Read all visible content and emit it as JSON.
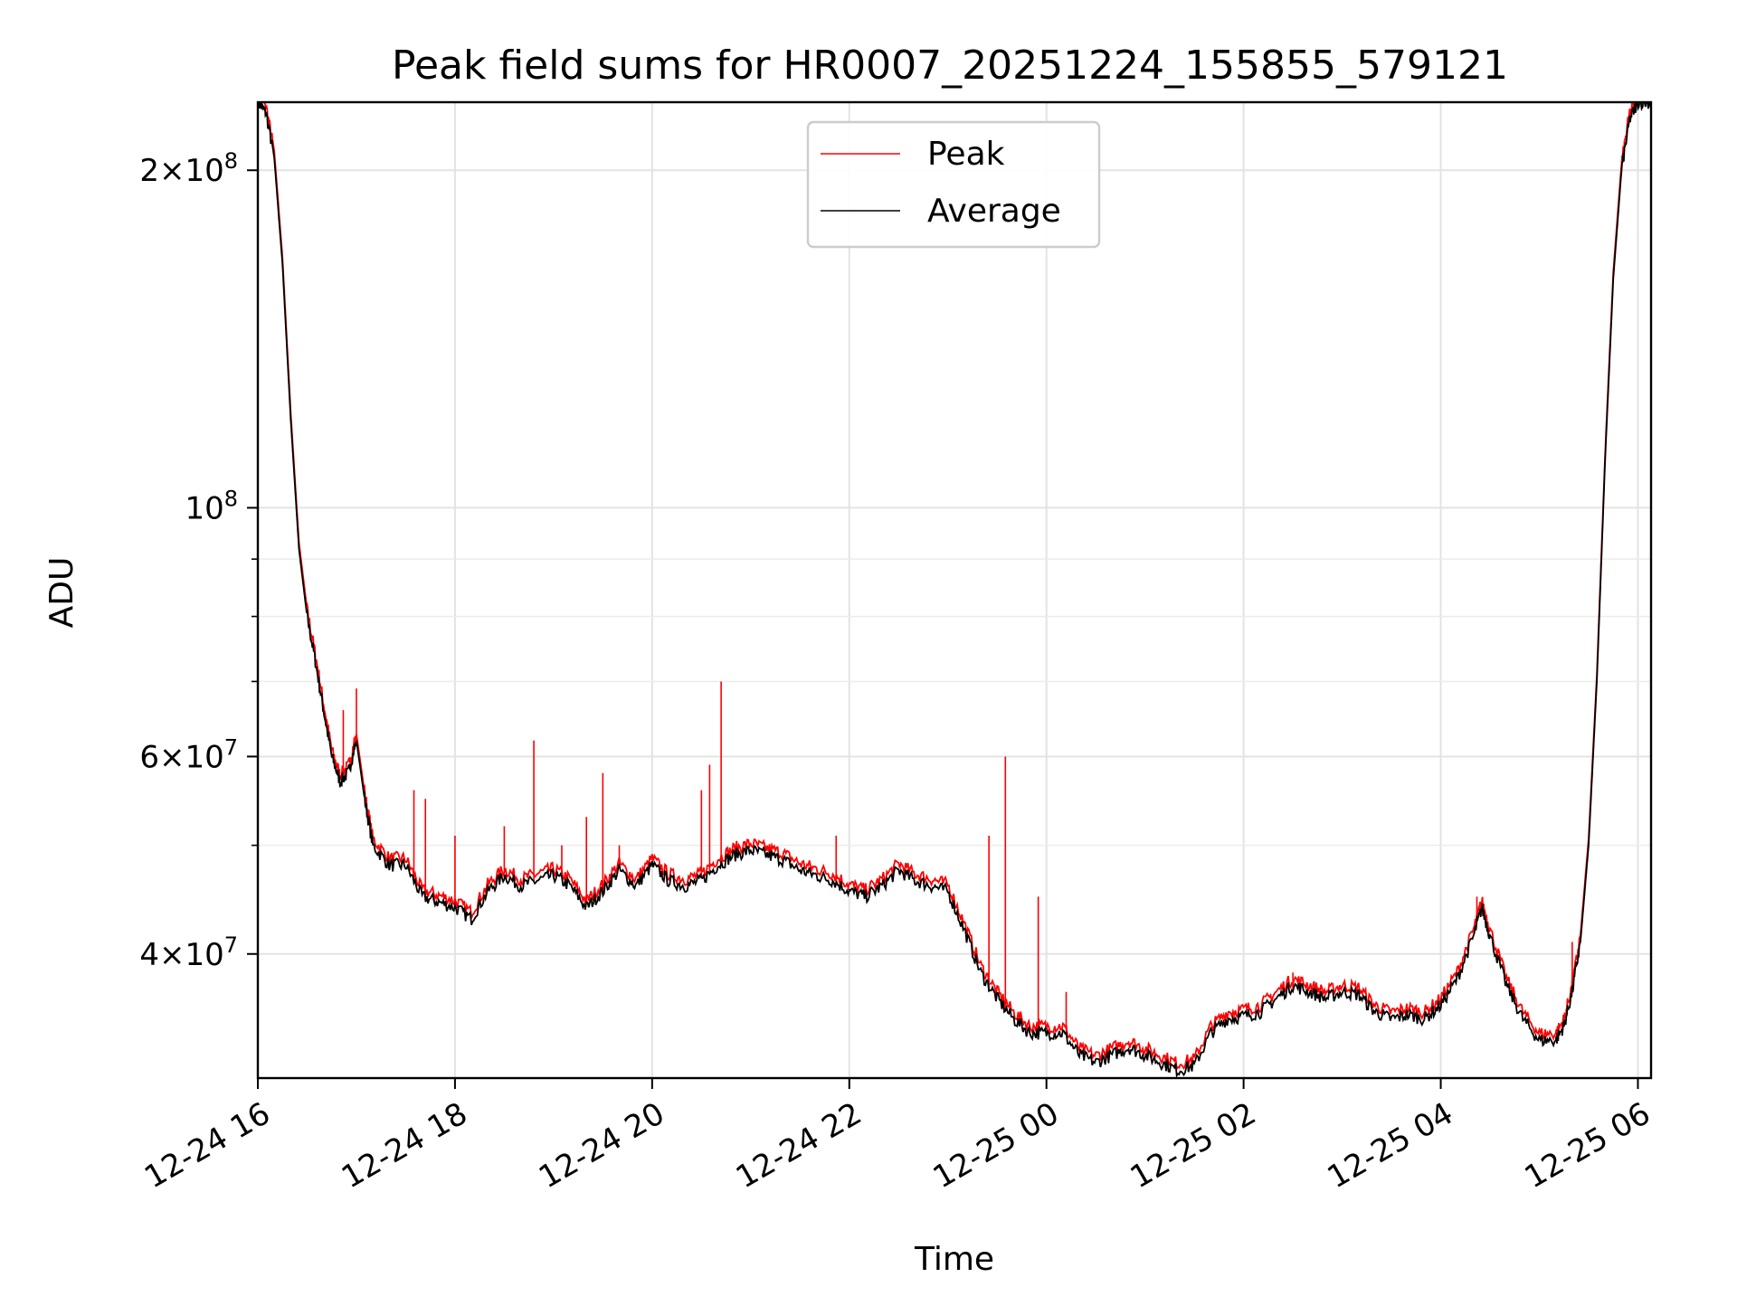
{
  "chart_data": {
    "type": "line",
    "title": "Peak field sums for HR0007_20251224_155855_579121",
    "xlabel": "Time",
    "ylabel": "ADU",
    "yscale": "log",
    "ylim": [
      31000000,
      230000000
    ],
    "xlim": [
      "2025-12-24 16:00",
      "2025-12-25 06:08"
    ],
    "grid": true,
    "legend_position": "top-center",
    "x_ticks": [
      {
        "value": "2025-12-24 16:00",
        "label": "12-24 16"
      },
      {
        "value": "2025-12-24 18:00",
        "label": "12-24 18"
      },
      {
        "value": "2025-12-24 20:00",
        "label": "12-24 20"
      },
      {
        "value": "2025-12-24 22:00",
        "label": "12-24 22"
      },
      {
        "value": "2025-12-25 00:00",
        "label": "12-25 00"
      },
      {
        "value": "2025-12-25 02:00",
        "label": "12-25 02"
      },
      {
        "value": "2025-12-25 04:00",
        "label": "12-25 04"
      },
      {
        "value": "2025-12-25 06:00",
        "label": "12-25 06"
      }
    ],
    "y_ticks": [
      {
        "value": 40000000,
        "mantissa": "4",
        "exponent": "7"
      },
      {
        "value": 60000000,
        "mantissa": "6",
        "exponent": "7"
      },
      {
        "value": 100000000,
        "mantissa": "",
        "exponent": "8"
      },
      {
        "value": 200000000,
        "mantissa": "2",
        "exponent": "8"
      }
    ],
    "y_minor_ticks": [
      50000000,
      70000000,
      80000000,
      90000000
    ],
    "series": [
      {
        "name": "Average",
        "color": "#000000",
        "points": [
          [
            "2025-12-24 16:00",
            230000000
          ],
          [
            "2025-12-24 16:05",
            225000000
          ],
          [
            "2025-12-24 16:10",
            205000000
          ],
          [
            "2025-12-24 16:15",
            165000000
          ],
          [
            "2025-12-24 16:20",
            120000000
          ],
          [
            "2025-12-24 16:25",
            92000000
          ],
          [
            "2025-12-24 16:30",
            80000000
          ],
          [
            "2025-12-24 16:35",
            73000000
          ],
          [
            "2025-12-24 16:40",
            66000000
          ],
          [
            "2025-12-24 16:45",
            60000000
          ],
          [
            "2025-12-24 16:50",
            57000000
          ],
          [
            "2025-12-24 16:55",
            58000000
          ],
          [
            "2025-12-24 17:00",
            62000000
          ],
          [
            "2025-12-24 17:05",
            55000000
          ],
          [
            "2025-12-24 17:10",
            50000000
          ],
          [
            "2025-12-24 17:20",
            48000000
          ],
          [
            "2025-12-24 17:30",
            48000000
          ],
          [
            "2025-12-24 17:40",
            45000000
          ],
          [
            "2025-12-24 17:50",
            44500000
          ],
          [
            "2025-12-24 18:00",
            44000000
          ],
          [
            "2025-12-24 18:10",
            43000000
          ],
          [
            "2025-12-24 18:20",
            45500000
          ],
          [
            "2025-12-24 18:30",
            47000000
          ],
          [
            "2025-12-24 18:40",
            46000000
          ],
          [
            "2025-12-24 18:50",
            46500000
          ],
          [
            "2025-12-24 19:00",
            47000000
          ],
          [
            "2025-12-24 19:10",
            46000000
          ],
          [
            "2025-12-24 19:20",
            44000000
          ],
          [
            "2025-12-24 19:30",
            45500000
          ],
          [
            "2025-12-24 19:40",
            47500000
          ],
          [
            "2025-12-24 19:50",
            46000000
          ],
          [
            "2025-12-24 20:00",
            48000000
          ],
          [
            "2025-12-24 20:10",
            46500000
          ],
          [
            "2025-12-24 20:20",
            46000000
          ],
          [
            "2025-12-24 20:30",
            46500000
          ],
          [
            "2025-12-24 20:40",
            48000000
          ],
          [
            "2025-12-24 20:50",
            49000000
          ],
          [
            "2025-12-24 21:00",
            49500000
          ],
          [
            "2025-12-24 21:10",
            49000000
          ],
          [
            "2025-12-24 21:20",
            48500000
          ],
          [
            "2025-12-24 21:30",
            47500000
          ],
          [
            "2025-12-24 21:40",
            47000000
          ],
          [
            "2025-12-24 21:50",
            46500000
          ],
          [
            "2025-12-24 22:00",
            45500000
          ],
          [
            "2025-12-24 22:10",
            45000000
          ],
          [
            "2025-12-24 22:20",
            46000000
          ],
          [
            "2025-12-24 22:30",
            47500000
          ],
          [
            "2025-12-24 22:40",
            46500000
          ],
          [
            "2025-12-24 22:50",
            46000000
          ],
          [
            "2025-12-24 23:00",
            45500000
          ],
          [
            "2025-12-24 23:10",
            42000000
          ],
          [
            "2025-12-24 23:20",
            38500000
          ],
          [
            "2025-12-24 23:30",
            36500000
          ],
          [
            "2025-12-24 23:40",
            35000000
          ],
          [
            "2025-12-24 23:50",
            34000000
          ],
          [
            "2025-12-25 00:00",
            34000000
          ],
          [
            "2025-12-25 00:10",
            34000000
          ],
          [
            "2025-12-25 00:20",
            32500000
          ],
          [
            "2025-12-25 00:30",
            32000000
          ],
          [
            "2025-12-25 00:40",
            32500000
          ],
          [
            "2025-12-25 00:50",
            33000000
          ],
          [
            "2025-12-25 01:00",
            32500000
          ],
          [
            "2025-12-25 01:10",
            32000000
          ],
          [
            "2025-12-25 01:20",
            31500000
          ],
          [
            "2025-12-25 01:30",
            31800000
          ],
          [
            "2025-12-25 01:40",
            34000000
          ],
          [
            "2025-12-25 01:50",
            35000000
          ],
          [
            "2025-12-25 02:00",
            35200000
          ],
          [
            "2025-12-25 02:10",
            35500000
          ],
          [
            "2025-12-25 02:20",
            36500000
          ],
          [
            "2025-12-25 02:30",
            37500000
          ],
          [
            "2025-12-25 02:40",
            37000000
          ],
          [
            "2025-12-25 02:50",
            36500000
          ],
          [
            "2025-12-25 03:00",
            37000000
          ],
          [
            "2025-12-25 03:10",
            36800000
          ],
          [
            "2025-12-25 03:20",
            35500000
          ],
          [
            "2025-12-25 03:30",
            35000000
          ],
          [
            "2025-12-25 03:40",
            35300000
          ],
          [
            "2025-12-25 03:50",
            35000000
          ],
          [
            "2025-12-25 04:00",
            36000000
          ],
          [
            "2025-12-25 04:10",
            38000000
          ],
          [
            "2025-12-25 04:20",
            41500000
          ],
          [
            "2025-12-25 04:25",
            44000000
          ],
          [
            "2025-12-25 04:30",
            41500000
          ],
          [
            "2025-12-25 04:40",
            37500000
          ],
          [
            "2025-12-25 04:50",
            35000000
          ],
          [
            "2025-12-25 05:00",
            33500000
          ],
          [
            "2025-12-25 05:10",
            33500000
          ],
          [
            "2025-12-25 05:15",
            34500000
          ],
          [
            "2025-12-25 05:20",
            37000000
          ],
          [
            "2025-12-25 05:25",
            41000000
          ],
          [
            "2025-12-25 05:30",
            50000000
          ],
          [
            "2025-12-25 05:35",
            70000000
          ],
          [
            "2025-12-25 05:40",
            110000000
          ],
          [
            "2025-12-25 05:45",
            160000000
          ],
          [
            "2025-12-25 05:50",
            200000000
          ],
          [
            "2025-12-25 05:55",
            222000000
          ],
          [
            "2025-12-25 06:00",
            230000000
          ],
          [
            "2025-12-25 06:08",
            230000000
          ]
        ]
      },
      {
        "name": "Peak",
        "color": "#ff0000",
        "spikes": [
          [
            "2025-12-24 16:52",
            66000000
          ],
          [
            "2025-12-24 17:00",
            69000000
          ],
          [
            "2025-12-24 17:22",
            49000000
          ],
          [
            "2025-12-24 17:35",
            56000000
          ],
          [
            "2025-12-24 17:42",
            55000000
          ],
          [
            "2025-12-24 18:00",
            51000000
          ],
          [
            "2025-12-24 18:30",
            52000000
          ],
          [
            "2025-12-24 18:48",
            62000000
          ],
          [
            "2025-12-24 19:05",
            50000000
          ],
          [
            "2025-12-24 19:20",
            53000000
          ],
          [
            "2025-12-24 19:30",
            58000000
          ],
          [
            "2025-12-24 19:40",
            50000000
          ],
          [
            "2025-12-24 20:30",
            56000000
          ],
          [
            "2025-12-24 20:35",
            59000000
          ],
          [
            "2025-12-24 20:42",
            70000000
          ],
          [
            "2025-12-24 21:52",
            51000000
          ],
          [
            "2025-12-24 23:25",
            51000000
          ],
          [
            "2025-12-24 23:35",
            60000000
          ],
          [
            "2025-12-24 23:55",
            45000000
          ],
          [
            "2025-12-25 00:12",
            37000000
          ],
          [
            "2025-12-25 02:30",
            38500000
          ],
          [
            "2025-12-25 04:22",
            45000000
          ],
          [
            "2025-12-25 05:20",
            41000000
          ]
        ]
      }
    ]
  }
}
